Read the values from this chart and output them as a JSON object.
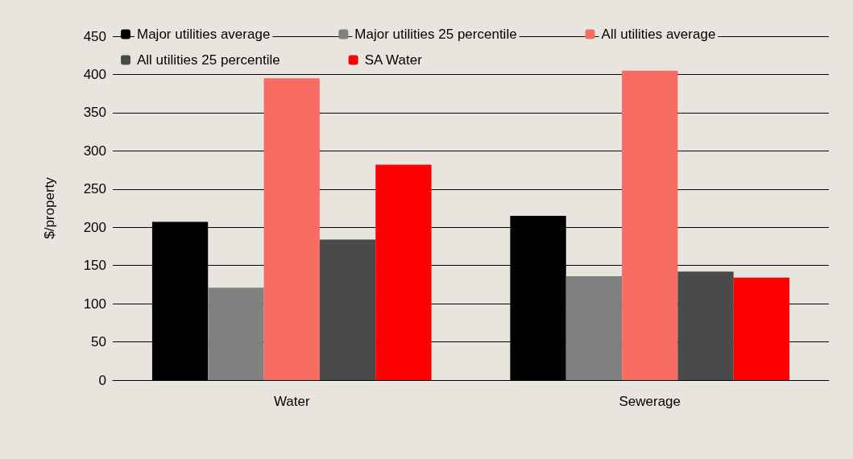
{
  "chart_data": {
    "type": "bar",
    "ylabel": "$/property",
    "categories": [
      "Water",
      "Sewerage"
    ],
    "series": [
      {
        "name": "Major utilities average",
        "color": "#000000",
        "values": [
          207,
          215
        ]
      },
      {
        "name": "Major utilities 25 percentile",
        "color": "#808080",
        "values": [
          121,
          136
        ]
      },
      {
        "name": "All utilities average",
        "color": "#f76d63",
        "values": [
          395,
          405
        ]
      },
      {
        "name": "All utilities 25 percentile",
        "color": "#4a4a4a",
        "values": [
          184,
          142
        ]
      },
      {
        "name": "SA Water",
        "color": "#ff0000",
        "values": [
          282,
          134
        ]
      }
    ],
    "ylim": [
      0,
      450
    ],
    "yticks": [
      0,
      50,
      100,
      150,
      200,
      250,
      300,
      350,
      400,
      450
    ],
    "grid": "y",
    "legend": "top"
  }
}
